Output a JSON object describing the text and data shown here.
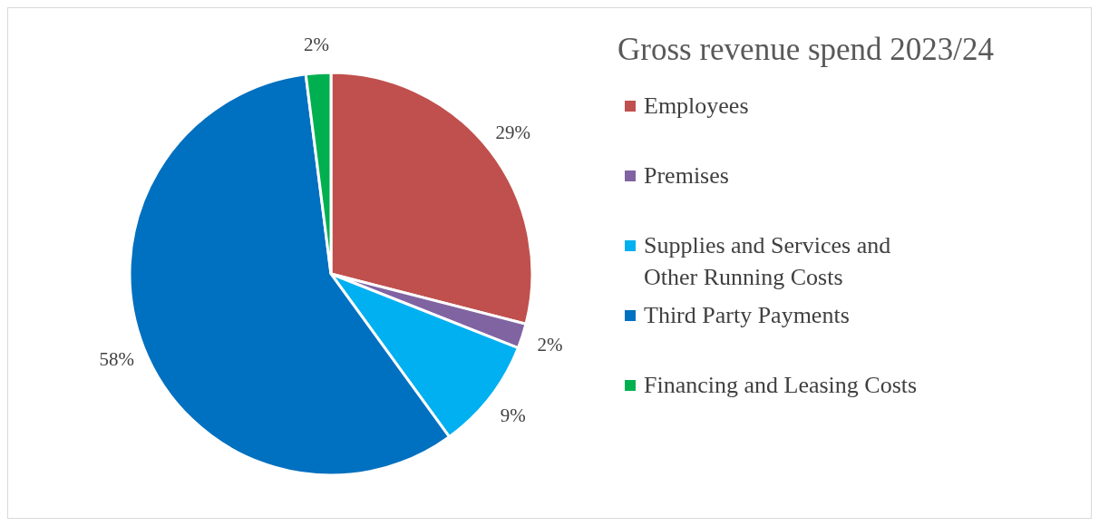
{
  "chart_data": {
    "type": "pie",
    "title": "Gross revenue spend 2023/24",
    "categories": [
      "Employees",
      "Premises",
      "Supplies and Services and Other Running Costs",
      "Third Party Payments",
      "Financing and Leasing Costs"
    ],
    "values": [
      29,
      2,
      9,
      58,
      2
    ],
    "colors": [
      "#c0504d",
      "#8064a2",
      "#00b0f0",
      "#0070c0",
      "#00b050"
    ],
    "value_labels": [
      "29%",
      "2%",
      "9%",
      "58%",
      "2%"
    ],
    "legend": "right"
  }
}
